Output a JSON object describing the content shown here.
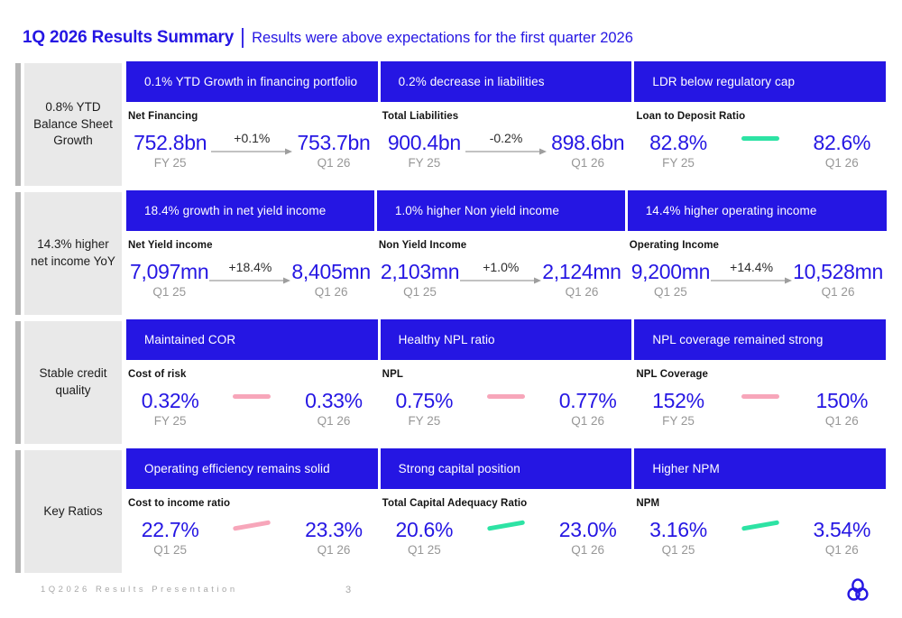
{
  "header": {
    "title": "1Q 2026 Results Summary",
    "subtitle": "Results were above expectations for the first quarter 2026"
  },
  "colors": {
    "accent_blue": "#2516e3",
    "teal": "#2de3a4",
    "pink": "#f7a6ba",
    "label_box_gray": "#e9e9e9",
    "gutter_gray": "#b5b5b5"
  },
  "rows": [
    {
      "label": "0.8% YTD Balance Sheet Growth",
      "cards": [
        {
          "headline": "0.1% YTD Growth in financing portfolio",
          "metric": "Net Financing",
          "prev": {
            "value": "752.8bn",
            "period": "FY 25"
          },
          "cur": {
            "value": "753.7bn",
            "period": "Q1 26"
          },
          "trend": {
            "type": "arrow",
            "label": "+0.1%"
          }
        },
        {
          "headline": "0.2% decrease in liabilities",
          "metric": "Total Liabilities",
          "prev": {
            "value": "900.4bn",
            "period": "FY 25"
          },
          "cur": {
            "value": "898.6bn",
            "period": "Q1 26"
          },
          "trend": {
            "type": "arrow",
            "label": "-0.2%"
          }
        },
        {
          "headline": "LDR below regulatory cap",
          "metric": "Loan to Deposit Ratio",
          "prev": {
            "value": "82.8%",
            "period": "FY 25"
          },
          "cur": {
            "value": "82.6%",
            "period": "Q1 26"
          },
          "trend": {
            "type": "dash",
            "color": "teal",
            "slant": false
          }
        }
      ]
    },
    {
      "label": "14.3% higher net income YoY",
      "cards": [
        {
          "headline": "18.4% growth in net yield income",
          "metric": "Net Yield income",
          "prev": {
            "value": "7,097mn",
            "period": "Q1 25"
          },
          "cur": {
            "value": "8,405mn",
            "period": "Q1 26"
          },
          "trend": {
            "type": "arrow",
            "label": "+18.4%"
          }
        },
        {
          "headline": "1.0% higher Non yield income",
          "metric": "Non Yield Income",
          "prev": {
            "value": "2,103mn",
            "period": "Q1 25"
          },
          "cur": {
            "value": "2,124mn",
            "period": "Q1 26"
          },
          "trend": {
            "type": "arrow",
            "label": "+1.0%"
          }
        },
        {
          "headline": "14.4% higher operating income",
          "metric": "Operating Income",
          "prev": {
            "value": "9,200mn",
            "period": "Q1 25"
          },
          "cur": {
            "value": "10,528mn",
            "period": "Q1 26"
          },
          "trend": {
            "type": "arrow",
            "label": "+14.4%"
          }
        }
      ]
    },
    {
      "label": "Stable credit quality",
      "cards": [
        {
          "headline": "Maintained COR",
          "metric": "Cost of risk",
          "prev": {
            "value": "0.32%",
            "period": "FY 25"
          },
          "cur": {
            "value": "0.33%",
            "period": "Q1 26"
          },
          "trend": {
            "type": "dash",
            "color": "pink",
            "slant": false
          }
        },
        {
          "headline": "Healthy NPL ratio",
          "metric": "NPL",
          "prev": {
            "value": "0.75%",
            "period": "FY 25"
          },
          "cur": {
            "value": "0.77%",
            "period": "Q1 26"
          },
          "trend": {
            "type": "dash",
            "color": "pink",
            "slant": false
          }
        },
        {
          "headline": "NPL coverage remained strong",
          "metric": "NPL Coverage",
          "prev": {
            "value": "152%",
            "period": "FY 25"
          },
          "cur": {
            "value": "150%",
            "period": "Q1 26"
          },
          "trend": {
            "type": "dash",
            "color": "pink",
            "slant": false
          }
        }
      ]
    },
    {
      "label": "Key Ratios",
      "cards": [
        {
          "headline": "Operating efficiency remains solid",
          "metric": "Cost to income ratio",
          "prev": {
            "value": "22.7%",
            "period": "Q1 25"
          },
          "cur": {
            "value": "23.3%",
            "period": "Q1 26"
          },
          "trend": {
            "type": "dash",
            "color": "pink",
            "slant": true
          }
        },
        {
          "headline": "Strong capital position",
          "metric": "Total Capital Adequacy Ratio",
          "prev": {
            "value": "20.6%",
            "period": "Q1 25"
          },
          "cur": {
            "value": "23.0%",
            "period": "Q1 26"
          },
          "trend": {
            "type": "dash",
            "color": "teal",
            "slant": true
          }
        },
        {
          "headline": "Higher NPM",
          "metric": "NPM",
          "prev": {
            "value": "3.16%",
            "period": "Q1 25"
          },
          "cur": {
            "value": "3.54%",
            "period": "Q1 26"
          },
          "trend": {
            "type": "dash",
            "color": "teal",
            "slant": true
          }
        }
      ]
    }
  ],
  "footer": {
    "presentation": "1Q2026 Results Presentation",
    "page": "3",
    "logo": "three-rings-logo"
  }
}
